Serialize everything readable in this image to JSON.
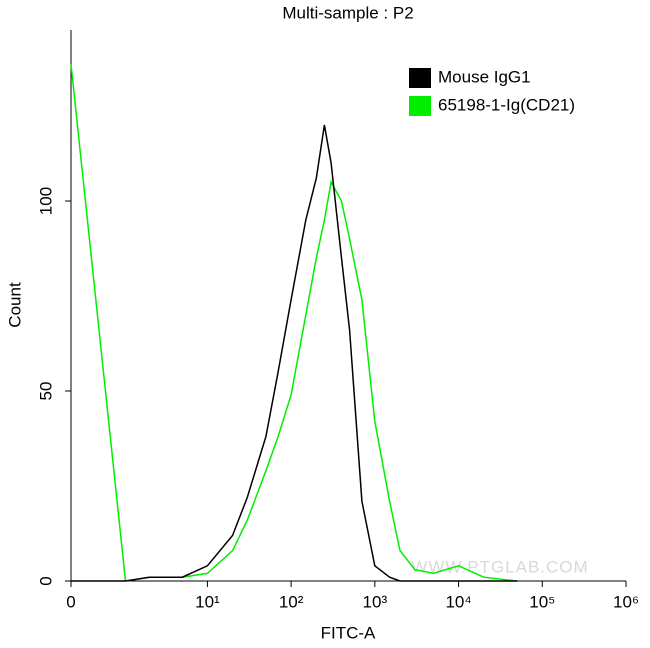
{
  "chart_data": {
    "type": "line",
    "title": "Multi-sample : P2",
    "x_label": "FITC-A",
    "y_label": "Count",
    "watermark": "WWW.PTGLAB.COM",
    "xscale": "biexponential",
    "x": [
      0,
      1,
      2,
      5,
      10,
      20,
      30,
      50,
      70,
      100,
      150,
      200,
      250,
      300,
      400,
      500,
      700,
      1000,
      1500,
      2000,
      3000,
      5000,
      10000,
      20000,
      50000
    ],
    "series": [
      {
        "name": "Mouse IgG1",
        "color": "#000000",
        "values": [
          0,
          0,
          1,
          1,
          4,
          12,
          22,
          38,
          55,
          74,
          95,
          106,
          120,
          110,
          85,
          66,
          21,
          4,
          1,
          0,
          0,
          0,
          0,
          0,
          0
        ]
      },
      {
        "name": "65198-1-Ig(CD21)",
        "color": "#00ee00",
        "values": [
          136,
          0,
          1,
          1,
          2,
          8,
          16,
          29,
          38,
          49,
          70,
          85,
          95,
          105,
          100,
          90,
          74,
          42,
          21,
          8,
          3,
          2,
          4,
          1,
          0
        ]
      }
    ],
    "xlim": [
      0,
      1000000
    ],
    "xticks": [
      0,
      {
        "value": 10,
        "label": "10¹"
      },
      {
        "value": 100,
        "label": "10²"
      },
      {
        "value": 1000,
        "label": "10³"
      },
      {
        "value": 10000,
        "label": "10⁴"
      },
      {
        "value": 100000,
        "label": "10⁵"
      },
      {
        "value": 1000000,
        "label": "10⁶"
      }
    ],
    "ylim": [
      0,
      145
    ],
    "yticks": [
      0,
      50,
      100
    ],
    "legend": "top-right"
  }
}
